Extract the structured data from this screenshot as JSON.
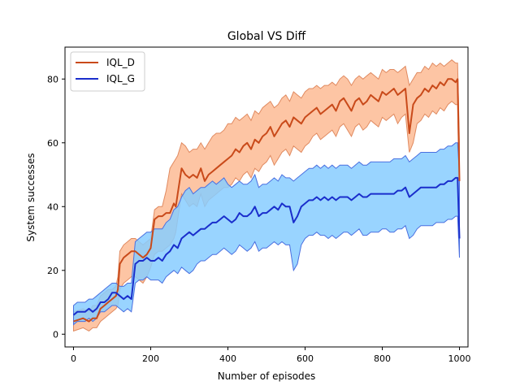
{
  "chart_data": {
    "type": "line",
    "title": "Global VS Diff",
    "xlabel": "Number of episodes",
    "ylabel": "System successes",
    "xlim": [
      -22,
      1022
    ],
    "ylim": [
      -4,
      90
    ],
    "xticks": [
      0,
      200,
      400,
      600,
      800,
      1000
    ],
    "yticks": [
      0,
      20,
      40,
      60,
      80
    ],
    "xtick_labels": [
      "0",
      "200",
      "400",
      "600",
      "800",
      "1000"
    ],
    "ytick_labels": [
      "0",
      "20",
      "40",
      "60",
      "80"
    ],
    "grid": false,
    "legend_position": "top-left",
    "series": [
      {
        "name": "IQL_D",
        "line_color": "#c94a1a",
        "band_fill": "#fdbb94",
        "band_edge": "#e08a60",
        "x": [
          0,
          25,
          40,
          50,
          60,
          70,
          80,
          90,
          100,
          110,
          115,
          120,
          130,
          140,
          150,
          160,
          170,
          180,
          190,
          200,
          210,
          220,
          230,
          240,
          250,
          260,
          265,
          270,
          280,
          290,
          300,
          310,
          320,
          330,
          340,
          350,
          360,
          370,
          380,
          390,
          400,
          410,
          420,
          430,
          440,
          450,
          460,
          470,
          480,
          490,
          500,
          510,
          520,
          530,
          540,
          550,
          560,
          570,
          580,
          590,
          600,
          610,
          620,
          630,
          640,
          650,
          660,
          670,
          680,
          690,
          700,
          710,
          720,
          730,
          740,
          750,
          760,
          770,
          780,
          790,
          800,
          810,
          820,
          830,
          840,
          850,
          860,
          870,
          880,
          890,
          900,
          910,
          920,
          930,
          940,
          950,
          960,
          970,
          980,
          990,
          995,
          1000
        ],
        "y": [
          4,
          5,
          4,
          5,
          5,
          8,
          9,
          10,
          11,
          12,
          14,
          22,
          24,
          25,
          26,
          26,
          25,
          24,
          25,
          27,
          36,
          37,
          37,
          38,
          38,
          41,
          40,
          44,
          52,
          50,
          49,
          50,
          49,
          52,
          48,
          50,
          51,
          52,
          53,
          54,
          55,
          56,
          58,
          57,
          59,
          60,
          58,
          61,
          60,
          62,
          63,
          65,
          62,
          64,
          66,
          67,
          65,
          68,
          67,
          66,
          68,
          69,
          70,
          71,
          69,
          70,
          71,
          72,
          70,
          73,
          74,
          72,
          70,
          73,
          74,
          72,
          73,
          75,
          74,
          73,
          76,
          75,
          76,
          77,
          75,
          76,
          77,
          63,
          72,
          74,
          75,
          77,
          76,
          78,
          77,
          79,
          78,
          80,
          80,
          79,
          80,
          48
        ],
        "upper": [
          7,
          8,
          7,
          9,
          9,
          12,
          13,
          14,
          14,
          15,
          18,
          26,
          28,
          29,
          30,
          30,
          29,
          28,
          29,
          30,
          39,
          40,
          40,
          45,
          52,
          54,
          55,
          56,
          60,
          59,
          57,
          58,
          58,
          60,
          58,
          60,
          62,
          63,
          63,
          64,
          66,
          66,
          68,
          67,
          68,
          69,
          67,
          70,
          69,
          71,
          72,
          73,
          71,
          72,
          74,
          75,
          73,
          76,
          75,
          74,
          76,
          77,
          77,
          78,
          77,
          78,
          78,
          79,
          78,
          80,
          81,
          80,
          78,
          80,
          81,
          80,
          81,
          82,
          81,
          80,
          83,
          82,
          83,
          83,
          82,
          83,
          84,
          78,
          80,
          82,
          82,
          84,
          83,
          85,
          84,
          85,
          84,
          85,
          86,
          85,
          85,
          60
        ],
        "lower": [
          1,
          2,
          1,
          2,
          2,
          4,
          5,
          6,
          7,
          8,
          9,
          14,
          16,
          17,
          18,
          18,
          17,
          16,
          18,
          21,
          25,
          26,
          26,
          27,
          28,
          30,
          32,
          36,
          44,
          42,
          40,
          41,
          40,
          44,
          40,
          42,
          43,
          44,
          45,
          46,
          46,
          47,
          49,
          48,
          50,
          51,
          49,
          52,
          51,
          53,
          54,
          56,
          53,
          55,
          57,
          58,
          56,
          59,
          58,
          57,
          59,
          60,
          62,
          63,
          61,
          62,
          63,
          64,
          62,
          65,
          66,
          64,
          62,
          65,
          66,
          64,
          65,
          67,
          66,
          65,
          68,
          67,
          68,
          69,
          66,
          68,
          69,
          57,
          60,
          66,
          67,
          69,
          68,
          70,
          69,
          71,
          70,
          72,
          73,
          72,
          72,
          40
        ]
      },
      {
        "name": "IQL_G",
        "line_color": "#1a2ecc",
        "band_fill": "#87ccff",
        "band_edge": "#4a6fe0",
        "x": [
          0,
          10,
          20,
          30,
          40,
          50,
          60,
          70,
          80,
          90,
          100,
          110,
          120,
          130,
          140,
          150,
          160,
          170,
          180,
          190,
          200,
          210,
          220,
          230,
          240,
          250,
          260,
          270,
          280,
          290,
          300,
          310,
          320,
          330,
          340,
          350,
          360,
          370,
          380,
          390,
          400,
          410,
          420,
          430,
          440,
          450,
          460,
          470,
          480,
          490,
          500,
          510,
          520,
          530,
          540,
          550,
          560,
          570,
          580,
          590,
          600,
          610,
          620,
          630,
          640,
          650,
          660,
          670,
          680,
          690,
          700,
          710,
          720,
          730,
          740,
          750,
          760,
          770,
          780,
          790,
          800,
          810,
          820,
          830,
          840,
          850,
          860,
          870,
          880,
          890,
          900,
          910,
          920,
          930,
          940,
          950,
          960,
          970,
          980,
          990,
          995,
          1000
        ],
        "y": [
          6,
          7,
          7,
          7,
          8,
          7,
          8,
          10,
          10,
          11,
          13,
          13,
          12,
          11,
          12,
          11,
          22,
          23,
          23,
          24,
          23,
          23,
          24,
          23,
          25,
          26,
          28,
          27,
          30,
          31,
          32,
          31,
          32,
          33,
          33,
          34,
          35,
          35,
          36,
          37,
          36,
          35,
          36,
          38,
          37,
          37,
          38,
          40,
          37,
          38,
          38,
          39,
          40,
          39,
          41,
          40,
          40,
          35,
          37,
          40,
          41,
          42,
          42,
          43,
          42,
          43,
          42,
          43,
          42,
          43,
          43,
          43,
          42,
          43,
          44,
          43,
          43,
          44,
          44,
          44,
          44,
          44,
          44,
          44,
          45,
          45,
          46,
          43,
          44,
          45,
          46,
          46,
          46,
          46,
          46,
          47,
          47,
          48,
          48,
          49,
          49,
          30
        ],
        "upper": [
          9,
          10,
          10,
          10,
          11,
          11,
          12,
          13,
          14,
          15,
          16,
          16,
          15,
          15,
          16,
          16,
          29,
          30,
          31,
          32,
          32,
          33,
          33,
          33,
          35,
          36,
          39,
          40,
          43,
          45,
          46,
          44,
          45,
          46,
          46,
          47,
          48,
          47,
          48,
          49,
          47,
          46,
          47,
          48,
          47,
          47,
          48,
          50,
          46,
          47,
          47,
          48,
          49,
          48,
          50,
          49,
          49,
          48,
          49,
          50,
          51,
          52,
          52,
          53,
          52,
          53,
          52,
          53,
          52,
          53,
          53,
          53,
          52,
          53,
          54,
          53,
          53,
          54,
          54,
          54,
          54,
          54,
          54,
          55,
          55,
          55,
          56,
          54,
          55,
          56,
          57,
          57,
          57,
          57,
          57,
          58,
          58,
          59,
          59,
          60,
          60,
          50
        ],
        "lower": [
          3,
          4,
          4,
          4,
          5,
          4,
          5,
          7,
          7,
          8,
          9,
          9,
          8,
          7,
          8,
          7,
          16,
          17,
          17,
          18,
          17,
          17,
          17,
          16,
          18,
          19,
          20,
          19,
          21,
          20,
          19,
          20,
          22,
          23,
          23,
          24,
          25,
          25,
          26,
          27,
          26,
          25,
          26,
          28,
          27,
          26,
          27,
          29,
          26,
          27,
          27,
          28,
          29,
          28,
          29,
          28,
          28,
          20,
          22,
          28,
          30,
          31,
          31,
          32,
          31,
          31,
          30,
          31,
          30,
          31,
          32,
          32,
          31,
          32,
          33,
          31,
          31,
          32,
          32,
          32,
          33,
          33,
          32,
          32,
          33,
          33,
          34,
          30,
          31,
          33,
          34,
          34,
          34,
          34,
          35,
          35,
          35,
          36,
          36,
          37,
          37,
          24
        ]
      }
    ]
  }
}
